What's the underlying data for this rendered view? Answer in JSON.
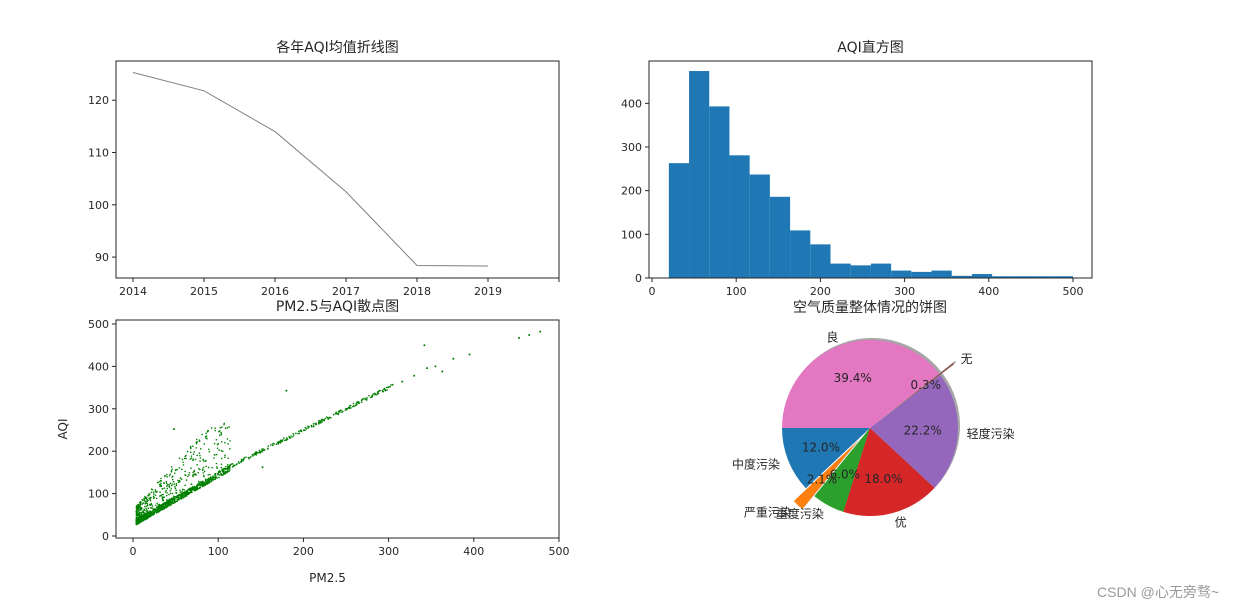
{
  "watermark": "CSDN @心无旁骛~",
  "chart_data": [
    {
      "id": "line",
      "type": "line",
      "title": "各年AQI均值折线图",
      "xlabel": "",
      "ylabel": "",
      "categories": [
        "2014",
        "2015",
        "2016",
        "2017",
        "2018",
        "2019"
      ],
      "values": [
        125.3,
        121.8,
        114.0,
        102.5,
        88.4,
        88.3
      ],
      "xticks": [
        "2014",
        "2015",
        "2016",
        "2017",
        "2018",
        "2019",
        ""
      ],
      "yticks": [
        90,
        100,
        110,
        120
      ],
      "ylim": [
        86,
        127.5
      ],
      "color": "#808080",
      "grid": false
    },
    {
      "id": "hist",
      "type": "bar",
      "title": "AQI直方图",
      "xlabel": "",
      "ylabel": "",
      "bin_start": 20,
      "bin_width": 24,
      "values": [
        263,
        474,
        393,
        281,
        237,
        186,
        109,
        77,
        33,
        29,
        33,
        17,
        14,
        17,
        5,
        9,
        4,
        4,
        4,
        4
      ],
      "xticks": [
        0,
        100,
        200,
        300,
        400,
        500
      ],
      "yticks": [
        0,
        100,
        200,
        300,
        400
      ],
      "xlim": [
        -4,
        524
      ],
      "ylim": [
        0,
        497
      ],
      "color": "#1f77b4",
      "grid": false
    },
    {
      "id": "scatter",
      "type": "scatter",
      "title": "PM2.5与AQI散点图",
      "xlabel": "PM2.5",
      "ylabel": "AQI",
      "xticks": [
        0,
        100,
        200,
        300,
        400,
        500
      ],
      "yticks": [
        0,
        100,
        200,
        300,
        400,
        500
      ],
      "xlim": [
        -20,
        500
      ],
      "ylim": [
        -8,
        508
      ],
      "color": "#008000",
      "outliers": [
        [
          48,
          252
        ],
        [
          88,
          248
        ],
        [
          180,
          343
        ],
        [
          342,
          450
        ],
        [
          345,
          396
        ],
        [
          355,
          400
        ],
        [
          363,
          388
        ],
        [
          376,
          418
        ],
        [
          395,
          428
        ],
        [
          453,
          467
        ],
        [
          465,
          474
        ],
        [
          478,
          482
        ],
        [
          152,
          162
        ],
        [
          316,
          364
        ],
        [
          330,
          378
        ]
      ],
      "trend": [
        [
          5,
          30
        ],
        [
          50,
          75
        ],
        [
          100,
          132
        ],
        [
          150,
          200
        ],
        [
          200,
          245
        ],
        [
          250,
          300
        ],
        [
          300,
          350
        ]
      ],
      "grid": false
    },
    {
      "id": "pie",
      "type": "pie",
      "title": "空气质量整体情况的饼图",
      "startangle": 180,
      "shadow": true,
      "slices": [
        {
          "label": "中度污染",
          "pct": 12.0,
          "pct_label": "12.0%",
          "color": "#1f77b4",
          "explode": 0
        },
        {
          "label": "严重污染",
          "pct": 2.1,
          "pct_label": "2.1%",
          "color": "#ff7f0e",
          "explode": 0.2
        },
        {
          "label": "重度污染",
          "pct": 6.0,
          "pct_label": "6.0%",
          "color": "#2ca02c",
          "explode": 0
        },
        {
          "label": "优",
          "pct": 18.0,
          "pct_label": "18.0%",
          "color": "#d62728",
          "explode": 0
        },
        {
          "label": "轻度污染",
          "pct": 22.2,
          "pct_label": "22.2%",
          "color": "#9467bd",
          "explode": 0
        },
        {
          "label": "无",
          "pct": 0.3,
          "pct_label": "0.3%",
          "color": "#8c564b",
          "explode": 0.2
        },
        {
          "label": "良",
          "pct": 39.4,
          "pct_label": "39.4%",
          "color": "#e377c2",
          "explode": 0
        }
      ]
    }
  ]
}
